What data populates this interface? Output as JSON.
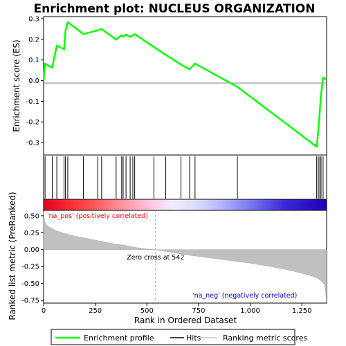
{
  "chart_data": {
    "type": "line",
    "title": "Enrichment plot: NUCLEUS ORGANIZATION",
    "top_panel": {
      "ylabel": "Enrichment score (ES)",
      "ylim": [
        -0.36,
        0.31
      ],
      "yticks": [
        -0.3,
        -0.2,
        -0.1,
        0.0,
        0.1,
        0.2,
        0.3
      ],
      "ytick_labels": [
        "-0.3",
        "-0.2",
        "-0.1",
        "0.0",
        "0.1",
        "0.2",
        "0.3"
      ],
      "series": [
        {
          "name": "Enrichment profile",
          "color": "#00ff00",
          "x": [
            0,
            7,
            42,
            64,
            99,
            106,
            117,
            193,
            262,
            281,
            351,
            378,
            385,
            399,
            419,
            432,
            441,
            591,
            665,
            707,
            733,
            938,
            1322,
            1330,
            1337,
            1343,
            1353,
            1368
          ],
          "y": [
            0.0,
            0.082,
            0.063,
            0.17,
            0.152,
            0.24,
            0.283,
            0.226,
            0.243,
            0.25,
            0.198,
            0.22,
            0.213,
            0.222,
            0.212,
            0.22,
            0.225,
            0.125,
            0.078,
            0.055,
            0.083,
            -0.03,
            -0.32,
            -0.235,
            -0.15,
            -0.07,
            0.015,
            0.005
          ]
        }
      ]
    },
    "hits": {
      "name": "Hits",
      "x": [
        7,
        42,
        64,
        99,
        106,
        117,
        193,
        262,
        281,
        351,
        378,
        385,
        399,
        419,
        432,
        441,
        534,
        591,
        665,
        707,
        733,
        938,
        1322,
        1330,
        1337,
        1343,
        1353
      ]
    },
    "bottom_panel": {
      "series_name": "Ranking metric scores",
      "ylabel": "Ranked list metric (PreRanked)",
      "xlabel": "Rank in Ordered Dataset",
      "ylim": [
        -0.79,
        0.58
      ],
      "yticks": [
        -0.75,
        -0.5,
        -0.25,
        0.0,
        0.25,
        0.5
      ],
      "ytick_labels": [
        "-0.75",
        "-0.50",
        "-0.25",
        "0.00",
        "0.25",
        "0.50"
      ],
      "xlim": [
        0,
        1370
      ],
      "xticks": [
        0,
        250,
        500,
        750,
        1000,
        1250
      ],
      "xtick_labels": [
        "0",
        "250",
        "500",
        "750",
        "1,000",
        "1,250"
      ],
      "metric_profile": {
        "rank": [
          0,
          5,
          15,
          30,
          60,
          100,
          150,
          200,
          250,
          300,
          350,
          400,
          450,
          500,
          542,
          600,
          700,
          800,
          900,
          1000,
          1100,
          1200,
          1250,
          1300,
          1330,
          1350,
          1360,
          1365,
          1369
        ],
        "value": [
          0.56,
          0.42,
          0.36,
          0.33,
          0.28,
          0.24,
          0.2,
          0.17,
          0.14,
          0.11,
          0.08,
          0.06,
          0.03,
          0.01,
          0.0,
          -0.03,
          -0.08,
          -0.12,
          -0.16,
          -0.2,
          -0.25,
          -0.31,
          -0.35,
          -0.39,
          -0.43,
          -0.48,
          -0.52,
          -0.6,
          -0.77
        ]
      },
      "zero_cross": 542,
      "annotations": {
        "pos": "'na_pos' (positively correlated)",
        "neg": "'na_neg' (negatively correlated)",
        "zero": "Zero cross at 542"
      }
    },
    "legend": {
      "placement": "bottom",
      "entries": [
        "Enrichment profile",
        "Hits",
        "Ranking metric scores"
      ]
    },
    "colors": {
      "profile": "#00ff00",
      "hits": "#000000",
      "metric": "#c0c0c0",
      "pos_label": "#ff0000",
      "neg_label": "#0000cd",
      "zero_line": "#a0a0a0"
    }
  }
}
